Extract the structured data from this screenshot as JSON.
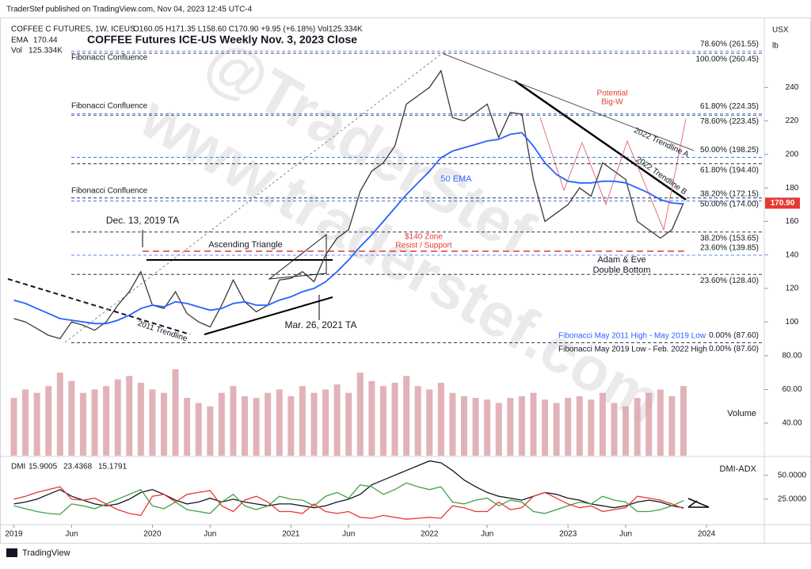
{
  "header": {
    "published": "TraderStef published on TradingView.com, Nov 04, 2023 12:45 UTC-4",
    "footer": "TradingView"
  },
  "chart_data": [
    {
      "type": "line",
      "title": "COFFEE Futures ICE-US Weekly Nov. 3, 2023 Close",
      "symbol": "COFFEE C FUTURES, 1W, ICEUS",
      "ohlc": "O160.05 H171.35 L158.60 C170.90 +9.95 (+6.18%) Vol125.334K",
      "ema_legend": "EMA",
      "ema_value": "170.44",
      "vol_legend": "Vol",
      "vol_value": "125.334K",
      "unit": "USX",
      "unit2": "lb",
      "x": [
        0,
        1,
        2,
        3,
        4,
        5,
        6,
        7,
        8,
        9,
        10,
        11,
        12,
        13,
        14,
        15,
        16,
        17,
        18,
        19,
        20,
        21,
        22,
        23,
        24,
        25,
        26,
        27,
        28,
        29,
        30,
        31,
        32,
        33,
        34,
        35,
        36,
        37,
        38,
        39,
        40,
        41,
        42,
        43,
        44,
        45,
        46,
        47,
        48,
        49,
        50,
        51,
        52,
        53,
        54,
        55,
        56,
        57,
        58
      ],
      "xlim": [
        -1.2,
        65
      ],
      "ylim": [
        84,
        278
      ],
      "yticks": [
        100,
        120,
        140,
        160,
        180,
        200,
        220,
        240
      ],
      "series": [
        {
          "name": "Close",
          "color": "#3a3a3a",
          "values": [
            102,
            100,
            96,
            92,
            90,
            100,
            98,
            95,
            100,
            110,
            118,
            130,
            110,
            108,
            118,
            105,
            100,
            97,
            110,
            125,
            112,
            106,
            110,
            125,
            126,
            130,
            124,
            140,
            150,
            155,
            178,
            190,
            195,
            205,
            230,
            235,
            240,
            250,
            222,
            220,
            225,
            230,
            210,
            225,
            224,
            185,
            160,
            165,
            170,
            180,
            175,
            195,
            190,
            185,
            160,
            155,
            150,
            155,
            170.9
          ]
        },
        {
          "name": "50 EMA",
          "color": "#2962ff",
          "values": [
            113,
            111,
            108,
            105,
            102,
            101,
            100,
            99,
            99,
            101,
            104,
            108,
            110,
            109,
            112,
            111,
            109,
            107,
            108,
            111,
            112,
            110,
            110,
            113,
            115,
            118,
            120,
            124,
            130,
            137,
            145,
            152,
            160,
            168,
            176,
            183,
            190,
            198,
            202,
            204,
            206,
            208,
            209,
            212,
            213,
            205,
            195,
            188,
            184,
            183,
            183,
            184,
            184,
            183,
            180,
            177,
            173,
            171,
            170.44
          ]
        }
      ],
      "last_price": {
        "value": 170.9,
        "label": "170.90"
      },
      "fib_levels": [
        {
          "value": 261.55,
          "label": "78.60% (261.55)",
          "color": "#2962ff"
        },
        {
          "value": 260.45,
          "label": "100.00% (260.45)",
          "color": "#131722"
        },
        {
          "value": 224.35,
          "label": "61.80% (224.35)",
          "color": "#2962ff"
        },
        {
          "value": 223.45,
          "label": "78.60% (223.45)",
          "color": "#131722"
        },
        {
          "value": 198.25,
          "label": "50.00% (198.25)",
          "color": "#2962ff"
        },
        {
          "value": 194.4,
          "label": "61.80% (194.40)",
          "color": "#131722"
        },
        {
          "value": 172.15,
          "label": "38.20% (172.15)",
          "color": "#2962ff"
        },
        {
          "value": 174,
          "label": "50.00% (174.00)",
          "color": "#131722"
        },
        {
          "value": 153.65,
          "label": "38.20% (153.65)",
          "color": "#131722"
        },
        {
          "value": 139.85,
          "label": "23.60% (139.85)",
          "color": "#2962ff"
        },
        {
          "value": 128.4,
          "label": "23.60% (128.40)",
          "color": "#131722"
        },
        {
          "value": 87.6,
          "label": "0.00% (87.60)",
          "color": "#2962ff"
        },
        {
          "value": 87.6,
          "label": "0.00% (87.60)",
          "color": "#131722"
        }
      ],
      "annotations": [
        "Fibonacci Confluence",
        "Fibonacci Confluence",
        "Fibonacci Confluence",
        "Dec. 13, 2019 TA",
        "Ascending Triangle",
        "$140 Zone",
        "Resist / Support",
        "50 EMA",
        "Potential",
        "Big-W",
        "2022 Trendline A",
        "2022 Trendline B",
        "Adam & Eve",
        "Double Bottom",
        "Mar. 26, 2021 TA",
        "2011 Trendline",
        "Fibonacci May 2011 High - May 2019 Low",
        "Fibonacci May 2019 Low - Feb. 2022 High"
      ],
      "watermark": [
        "@TraderStef",
        "www.traderstef.com"
      ]
    },
    {
      "type": "bar",
      "label": "Volume",
      "color": "#d9a0a6",
      "x": [
        0,
        1,
        2,
        3,
        4,
        5,
        6,
        7,
        8,
        9,
        10,
        11,
        12,
        13,
        14,
        15,
        16,
        17,
        18,
        19,
        20,
        21,
        22,
        23,
        24,
        25,
        26,
        27,
        28,
        29,
        30,
        31,
        32,
        33,
        34,
        35,
        36,
        37,
        38,
        39,
        40,
        41,
        42,
        43,
        44,
        45,
        46,
        47,
        48,
        49,
        50,
        51,
        52,
        53,
        54,
        55,
        56,
        57,
        58
      ],
      "xlim": [
        -1.2,
        65
      ],
      "ylim": [
        20.7,
        84.2
      ],
      "yticks": [
        {
          "value": 40,
          "label": "40.00"
        },
        {
          "value": 60,
          "label": "60.00"
        },
        {
          "value": 80,
          "label": "80.00"
        }
      ],
      "values": [
        55,
        60,
        58,
        62,
        70,
        65,
        58,
        60,
        62,
        66,
        68,
        64,
        60,
        58,
        72,
        55,
        52,
        50,
        58,
        62,
        56,
        55,
        58,
        60,
        56,
        62,
        58,
        60,
        63,
        58,
        70,
        65,
        62,
        64,
        68,
        62,
        60,
        64,
        58,
        56,
        55,
        54,
        52,
        55,
        56,
        58,
        54,
        52,
        55,
        56,
        54,
        58,
        52,
        50,
        55,
        58,
        60,
        56,
        62
      ]
    },
    {
      "type": "line",
      "label": "DMI-ADX",
      "legend": "DMI",
      "x": [
        0,
        1,
        2,
        3,
        4,
        5,
        6,
        7,
        8,
        9,
        10,
        11,
        12,
        13,
        14,
        15,
        16,
        17,
        18,
        19,
        20,
        21,
        22,
        23,
        24,
        25,
        26,
        27,
        28,
        29,
        30,
        31,
        32,
        33,
        34,
        35,
        36,
        37,
        38,
        39,
        40,
        41,
        42,
        43,
        44,
        45,
        46,
        47,
        48,
        49,
        50,
        51,
        52,
        53,
        54,
        55,
        56,
        57,
        58
      ],
      "xlim": [
        -1.2,
        65
      ],
      "ylim": [
        0,
        68
      ],
      "yticks": [
        {
          "value": 25,
          "label": "25.0000"
        },
        {
          "value": 50,
          "label": "50.0000"
        }
      ],
      "xticks": [
        {
          "value": 0,
          "label": "2019"
        },
        {
          "value": 5,
          "label": "Jun"
        },
        {
          "value": 12,
          "label": "2020"
        },
        {
          "value": 17,
          "label": "Jun"
        },
        {
          "value": 24,
          "label": "2021"
        },
        {
          "value": 29,
          "label": "Jun"
        },
        {
          "value": 36,
          "label": "2022"
        },
        {
          "value": 41,
          "label": "Jun"
        },
        {
          "value": 48,
          "label": "2023"
        },
        {
          "value": 53,
          "label": "Jun"
        },
        {
          "value": 60,
          "label": "2024"
        }
      ],
      "legend_values": [
        "15.9005",
        "23.4368",
        "15.1791"
      ],
      "series": [
        {
          "name": "ADX",
          "color": "#131722",
          "values": [
            20,
            22,
            25,
            30,
            35,
            28,
            24,
            20,
            18,
            20,
            25,
            32,
            35,
            30,
            24,
            20,
            22,
            26,
            22,
            25,
            22,
            20,
            18,
            20,
            20,
            18,
            16,
            18,
            22,
            25,
            30,
            40,
            45,
            50,
            55,
            60,
            65,
            63,
            55,
            45,
            38,
            32,
            28,
            26,
            24,
            28,
            32,
            30,
            26,
            24,
            20,
            18,
            16,
            18,
            22,
            24,
            22,
            18,
            15.9
          ]
        },
        {
          "name": "DI+",
          "color": "#43a047",
          "values": [
            18,
            15,
            12,
            10,
            9,
            20,
            18,
            15,
            20,
            25,
            30,
            35,
            18,
            15,
            22,
            14,
            12,
            10,
            22,
            30,
            18,
            14,
            18,
            28,
            25,
            24,
            18,
            28,
            32,
            26,
            40,
            38,
            30,
            35,
            42,
            38,
            35,
            38,
            22,
            20,
            24,
            26,
            18,
            24,
            22,
            12,
            10,
            14,
            18,
            22,
            20,
            28,
            24,
            22,
            12,
            12,
            14,
            18,
            23.44
          ]
        },
        {
          "name": "DI-",
          "color": "#e53935",
          "values": [
            25,
            28,
            32,
            35,
            38,
            25,
            24,
            26,
            20,
            14,
            10,
            8,
            28,
            30,
            22,
            30,
            32,
            34,
            18,
            12,
            24,
            28,
            22,
            12,
            12,
            10,
            20,
            12,
            10,
            12,
            6,
            5,
            8,
            6,
            4,
            5,
            6,
            5,
            18,
            16,
            12,
            12,
            22,
            14,
            16,
            28,
            32,
            26,
            20,
            16,
            18,
            12,
            14,
            16,
            28,
            26,
            24,
            20,
            15.18
          ]
        }
      ]
    }
  ]
}
